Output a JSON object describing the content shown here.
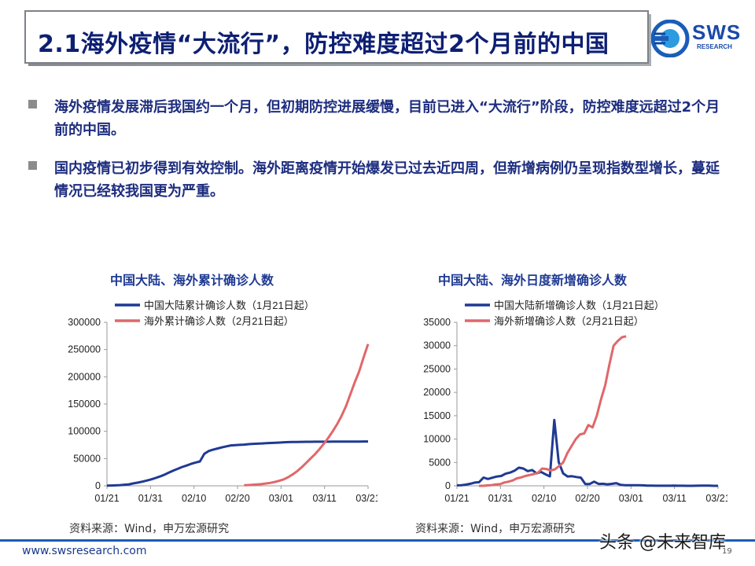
{
  "header": {
    "title": "2.1海外疫情“大流行”，防控难度超过2个月前的中国",
    "logo_text": "SWS",
    "logo_sub": "RESEARCH"
  },
  "bullets": [
    {
      "text": "海外疫情发展滞后我国约一个月，但初期防控进展缓慢，目前已进入“大流行”阶段，防控难度远超过2个月前的中国。"
    },
    {
      "text": "国内疫情已初步得到有效控制。海外距离疫情开始爆发已过去近四周，但新增病例仍呈现指数型增长，蔓延情况已经较我国更为严重。"
    }
  ],
  "chart_data": [
    {
      "type": "line",
      "title": "中国大陆、海外累计确诊人数",
      "x_labels": [
        "01/21",
        "01/31",
        "02/10",
        "02/20",
        "03/01",
        "03/11",
        "03/21"
      ],
      "ylim": [
        0,
        300000
      ],
      "y_ticks": [
        "300000",
        "250000",
        "200000",
        "150000",
        "100000",
        "50000",
        "0"
      ],
      "legend_position": "top",
      "series": [
        {
          "name": "中国大陆累计确诊人数（1月21日起）",
          "color": "#1f3a93",
          "values": [
            440,
            571,
            830,
            1287,
            1975,
            2744,
            4515,
            5974,
            7711,
            9692,
            11791,
            14380,
            17205,
            20438,
            24324,
            28018,
            31161,
            34546,
            37198,
            40171,
            42638,
            44653,
            58761,
            63851,
            66492,
            68500,
            70548,
            72436,
            74185,
            74576,
            75077,
            75550,
            76396,
            77041,
            77262,
            77779,
            78190,
            78630,
            78959,
            79394,
            79968,
            80174,
            80303,
            80424,
            80581,
            80734,
            80815,
            80868,
            80905,
            80932,
            80969,
            81003,
            81021,
            81048,
            81077,
            81116,
            81151,
            81235,
            81300,
            81416
          ]
        },
        {
          "name": "海外累计确诊人数（2月21日起）",
          "color": "#e0676a",
          "values": [
            null,
            null,
            null,
            null,
            null,
            null,
            null,
            null,
            null,
            null,
            null,
            null,
            null,
            null,
            null,
            null,
            null,
            null,
            null,
            null,
            null,
            null,
            null,
            null,
            null,
            null,
            null,
            null,
            null,
            null,
            null,
            1200,
            1500,
            2000,
            2600,
            3300,
            4300,
            5500,
            7200,
            9500,
            12000,
            16000,
            21000,
            27000,
            34000,
            42000,
            50000,
            58000,
            67000,
            77000,
            88000,
            100000,
            113000,
            128000,
            146000,
            168000,
            190000,
            210000,
            236000,
            260000
          ]
        }
      ]
    },
    {
      "type": "line",
      "title": "中国大陆、海外日度新增确诊人数",
      "x_labels": [
        "01/21",
        "01/31",
        "02/10",
        "02/20",
        "03/01",
        "03/11",
        "03/21"
      ],
      "ylim": [
        0,
        35000
      ],
      "y_ticks": [
        "35000",
        "30000",
        "25000",
        "20000",
        "15000",
        "10000",
        "5000",
        "0"
      ],
      "legend_position": "top",
      "series": [
        {
          "name": "中国大陆新增确诊人数（1月21日起）",
          "color": "#1f3a93",
          "values": [
            100,
            131,
            259,
            444,
            688,
            769,
            1771,
            1459,
            1737,
            1981,
            2099,
            2589,
            2825,
            3233,
            3886,
            3694,
            3143,
            3385,
            2652,
            2973,
            2467,
            2015,
            14108,
            5090,
            2641,
            2008,
            2048,
            1888,
            1749,
            391,
            394,
            889,
            406,
            433,
            327,
            427,
            573,
            202,
            125,
            119,
            139,
            143,
            99,
            44,
            40,
            19,
            24,
            11,
            20,
            30,
            21,
            13,
            8,
            0,
            15,
            39,
            41,
            46,
            0,
            0
          ]
        },
        {
          "name": "海外新增确诊人数（2月21日起）",
          "color": "#e0676a",
          "values": [
            null,
            null,
            null,
            null,
            null,
            null,
            null,
            null,
            null,
            null,
            null,
            null,
            null,
            null,
            null,
            null,
            null,
            null,
            null,
            null,
            null,
            null,
            null,
            null,
            null,
            null,
            null,
            null,
            null,
            null,
            null,
            null,
            null,
            null,
            null,
            null,
            null,
            null,
            null,
            null,
            null,
            null,
            null,
            null,
            null,
            null,
            null,
            null,
            null,
            null,
            null,
            null,
            null,
            null,
            null,
            null,
            null,
            null,
            null,
            null
          ]
        }
      ]
    }
  ],
  "series2_overseas_daily": [
    0,
    0,
    80,
    150,
    300,
    350,
    700,
    900,
    1150,
    1600,
    1800,
    2100,
    2300,
    2500,
    2800,
    3700,
    3600,
    3300,
    3500,
    4200,
    5000,
    7000,
    8500,
    10000,
    11000,
    11200,
    13000,
    12500,
    15000,
    18500,
    21500,
    26000,
    30000,
    31000,
    31800,
    32000
  ],
  "source": "资料来源：Wind，申万宏源研究",
  "footer": {
    "url": "www.swsresearch.com",
    "page_number": "19",
    "watermark": "头条 @未来智库"
  },
  "colors": {
    "title": "#0d1f73",
    "china": "#1f3a93",
    "overseas": "#e0676a",
    "footer_line": "#1a5db8"
  }
}
